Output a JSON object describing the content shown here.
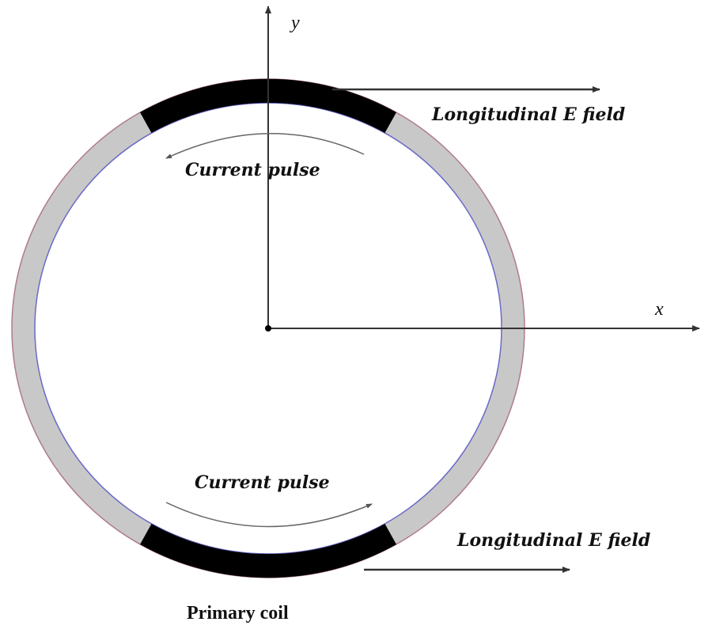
{
  "labels": {
    "y_axis": "y",
    "x_axis": "x",
    "top_field": "Longitudinal E field",
    "top_current": "Current pulse",
    "bottom_current": "Current pulse",
    "bottom_field": "Longitudinal E field",
    "caption": "Primary coil"
  },
  "colors": {
    "ring": "#c8c8c8",
    "coil": "#000000",
    "outer_edge": "#b07a90",
    "inner_edge": "#6a6ac8"
  }
}
